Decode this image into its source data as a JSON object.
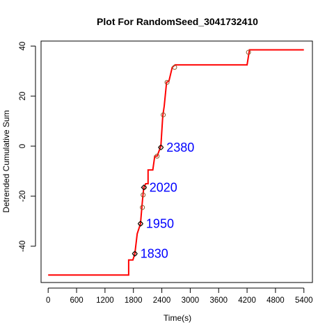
{
  "chart_data": {
    "type": "line",
    "title": "Plot For RandomSeed_3041732410",
    "xlabel": "Time(s)",
    "ylabel": "Detrended Cumulative Sum",
    "xlim": [
      -150,
      5580
    ],
    "ylim": [
      -54.5,
      42
    ],
    "xticks": [
      0,
      600,
      1200,
      1800,
      2400,
      3000,
      3600,
      4200,
      4800,
      5400
    ],
    "yticks": [
      -40,
      -20,
      0,
      20,
      40
    ],
    "grid": false,
    "colors": {
      "line": "#ff0000",
      "annotation": "#0000ff",
      "marker": "#000000",
      "circle": "#8b5a2b"
    },
    "series": [
      {
        "values": [
          [
            0,
            -51.5
          ],
          [
            1700,
            -51.5
          ],
          [
            1700,
            -45.5
          ],
          [
            1790,
            -45.5
          ],
          [
            1830,
            -43
          ],
          [
            1880,
            -35
          ],
          [
            1950,
            -31
          ],
          [
            1980,
            -24
          ],
          [
            2000,
            -20
          ],
          [
            2020,
            -16.5
          ],
          [
            2060,
            -15
          ],
          [
            2110,
            -15
          ],
          [
            2110,
            -9.5
          ],
          [
            2210,
            -9.5
          ],
          [
            2250,
            -4
          ],
          [
            2300,
            -4
          ],
          [
            2380,
            0
          ],
          [
            2420,
            12
          ],
          [
            2450,
            16
          ],
          [
            2500,
            25.5
          ],
          [
            2550,
            26
          ],
          [
            2620,
            31.5
          ],
          [
            2680,
            32.5
          ],
          [
            4200,
            32.5
          ],
          [
            4250,
            38.5
          ],
          [
            5400,
            38.5
          ]
        ]
      }
    ],
    "circles": [
      [
        1830,
        -43
      ],
      [
        1950,
        -31
      ],
      [
        1990,
        -24.5
      ],
      [
        2005,
        -19.5
      ],
      [
        2030,
        -16.5
      ],
      [
        2300,
        -4
      ],
      [
        2380,
        -0.5
      ],
      [
        2430,
        12.5
      ],
      [
        2510,
        25.5
      ],
      [
        2670,
        31.5
      ],
      [
        4230,
        37.5
      ]
    ],
    "diamonds": [
      {
        "x": 1830,
        "y": -43
      },
      {
        "x": 1950,
        "y": -31
      },
      {
        "x": 2020,
        "y": -16.5
      },
      {
        "x": 2380,
        "y": -0.5
      }
    ],
    "annotations": [
      {
        "x": 1830,
        "y": -43,
        "text": "1830"
      },
      {
        "x": 1950,
        "y": -31,
        "text": "1950"
      },
      {
        "x": 2020,
        "y": -16.5,
        "text": "2020"
      },
      {
        "x": 2380,
        "y": -0.5,
        "text": "2380"
      }
    ]
  }
}
